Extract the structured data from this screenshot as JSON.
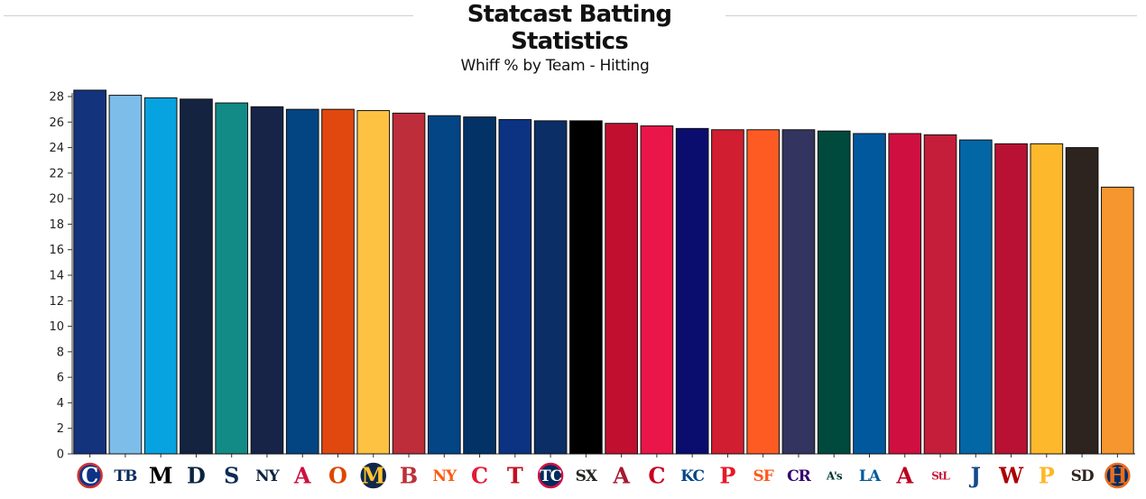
{
  "header": {
    "title": "Statcast Batting Statistics"
  },
  "chart_data": {
    "type": "bar",
    "title": "Whiff % by Team - Hitting",
    "xlabel": "",
    "ylabel": "",
    "ylim": [
      0,
      28
    ],
    "yticks": [
      0,
      2,
      4,
      6,
      8,
      10,
      12,
      14,
      16,
      18,
      20,
      22,
      24,
      26,
      28
    ],
    "grid": false,
    "categories": [
      "CHC",
      "TB",
      "MIA",
      "DET",
      "SEA",
      "NYY",
      "ATL",
      "BAL",
      "MIL",
      "BOS",
      "NYM",
      "CLE",
      "TEX",
      "MIN",
      "CWS",
      "ARI",
      "CIN",
      "KC",
      "PHI",
      "SF",
      "COL",
      "OAK",
      "LAD",
      "LAA",
      "STL",
      "TOR",
      "WSH",
      "PIT",
      "SD",
      "HOU"
    ],
    "values": [
      28.5,
      28.1,
      27.9,
      27.8,
      27.5,
      27.2,
      27.0,
      27.0,
      26.9,
      26.7,
      26.5,
      26.4,
      26.2,
      26.1,
      26.1,
      25.9,
      25.7,
      25.5,
      25.4,
      25.4,
      25.4,
      25.3,
      25.1,
      25.1,
      25.0,
      24.6,
      24.3,
      24.3,
      24.0,
      20.9
    ],
    "colors": [
      "#14337d",
      "#7dbde9",
      "#06a3e0",
      "#14233f",
      "#128a86",
      "#172448",
      "#034582",
      "#e1480f",
      "#fdc241",
      "#bd2d3a",
      "#034585",
      "#033366",
      "#0c3382",
      "#0c2e66",
      "#000000",
      "#c1102f",
      "#ea1549",
      "#0b0d6e",
      "#d11e31",
      "#fe5b23",
      "#33345f",
      "#004a3d",
      "#01589d",
      "#cf0f3f",
      "#c41e3a",
      "#0366a5",
      "#b91133",
      "#feb82b",
      "#2d241f",
      "#f5962e"
    ],
    "logos": [
      {
        "text": "C",
        "bg": "#0e3386",
        "fg": "#ffffff",
        "ring": "#cc3433"
      },
      {
        "text": "TB",
        "fg": "#092c5c"
      },
      {
        "text": "M",
        "fg": "#000000"
      },
      {
        "text": "D",
        "fg": "#0c2340"
      },
      {
        "text": "S",
        "fg": "#0c2c56"
      },
      {
        "text": "NY",
        "fg": "#0c2340"
      },
      {
        "text": "A",
        "fg": "#ce1141"
      },
      {
        "text": "O",
        "fg": "#df4601"
      },
      {
        "text": "M",
        "bg": "#12284b",
        "fg": "#ffc52f"
      },
      {
        "text": "B",
        "fg": "#bd3039"
      },
      {
        "text": "NY",
        "fg": "#ff5910"
      },
      {
        "text": "C",
        "fg": "#e31937"
      },
      {
        "text": "T",
        "fg": "#c0111f"
      },
      {
        "text": "TC",
        "bg": "#002b5c",
        "fg": "#ffffff",
        "ring": "#d31145"
      },
      {
        "text": "SX",
        "fg": "#27251f"
      },
      {
        "text": "A",
        "fg": "#a71930"
      },
      {
        "text": "C",
        "fg": "#c6011f"
      },
      {
        "text": "KC",
        "fg": "#004687"
      },
      {
        "text": "P",
        "fg": "#e81828"
      },
      {
        "text": "SF",
        "fg": "#fd5a1e"
      },
      {
        "text": "CR",
        "fg": "#33006f"
      },
      {
        "text": "A's",
        "fg": "#003831"
      },
      {
        "text": "LA",
        "fg": "#005a9c"
      },
      {
        "text": "A",
        "fg": "#ba0021"
      },
      {
        "text": "StL",
        "fg": "#c41e3a"
      },
      {
        "text": "J",
        "fg": "#134a8e"
      },
      {
        "text": "W",
        "fg": "#ab0003"
      },
      {
        "text": "P",
        "fg": "#fdb827"
      },
      {
        "text": "SD",
        "fg": "#2f241d"
      },
      {
        "text": "H",
        "bg": "#002d62",
        "fg": "#eb6e1f",
        "ring": "#eb6e1f"
      }
    ]
  }
}
